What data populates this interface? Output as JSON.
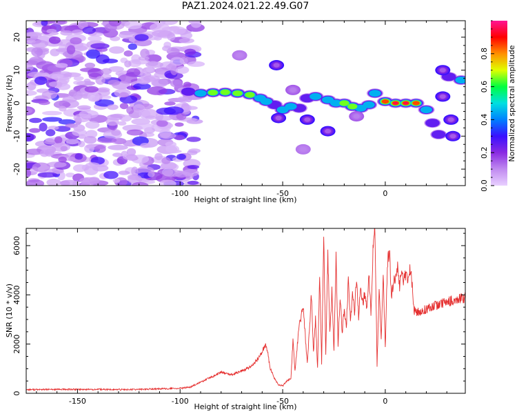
{
  "title": "PAZ1.2024.021.22.49.G07",
  "chart_data": [
    {
      "type": "heatmap",
      "xlabel": "Height of straight line (km)",
      "ylabel": "Frequency (Hz)",
      "xlim": [
        -175,
        39
      ],
      "ylim": [
        -25,
        25
      ],
      "xticks": [
        -150,
        -100,
        -50,
        0
      ],
      "yticks": [
        -20,
        -10,
        0,
        10,
        20
      ],
      "colorbar": {
        "label": "Normalized spectral amplitude",
        "range": [
          0,
          1
        ],
        "ticks": [
          0.0,
          0.2,
          0.4,
          0.6,
          0.8
        ],
        "colormap": [
          "#e8d0ff",
          "#c08af0",
          "#8a2be2",
          "#3a10ff",
          "#0080ff",
          "#00e0e0",
          "#00ff40",
          "#e0ff00",
          "#ff9000",
          "#ff0000",
          "#ff1493"
        ]
      },
      "noise_region": {
        "x_range": [
          -175,
          -92
        ],
        "y_range": [
          -25,
          25
        ]
      },
      "ridge": [
        {
          "x": -96,
          "y": 3.5,
          "amp": 0.35
        },
        {
          "x": -90,
          "y": 3.0,
          "amp": 0.55
        },
        {
          "x": -84,
          "y": 3.2,
          "amp": 0.65
        },
        {
          "x": -78,
          "y": 3.3,
          "amp": 0.75
        },
        {
          "x": -72,
          "y": 3.0,
          "amp": 0.78
        },
        {
          "x": -66,
          "y": 2.5,
          "amp": 0.8
        },
        {
          "x": -61,
          "y": 1.5,
          "amp": 0.55
        },
        {
          "x": -58,
          "y": 0.5,
          "amp": 0.45
        },
        {
          "x": -54,
          "y": -0.5,
          "amp": 0.3
        },
        {
          "x": -50,
          "y": -2.0,
          "amp": 0.55
        },
        {
          "x": -46,
          "y": -1.0,
          "amp": 0.5
        },
        {
          "x": -42,
          "y": -1.5,
          "amp": 0.4
        },
        {
          "x": -38,
          "y": 1.5,
          "amp": 0.35
        },
        {
          "x": -34,
          "y": 2.0,
          "amp": 0.45
        },
        {
          "x": -28,
          "y": 1.0,
          "amp": 0.5
        },
        {
          "x": -24,
          "y": 0.0,
          "amp": 0.55
        },
        {
          "x": -20,
          "y": 0.0,
          "amp": 0.7
        },
        {
          "x": -16,
          "y": -1.0,
          "amp": 0.65
        },
        {
          "x": -12,
          "y": -1.5,
          "amp": 0.6
        },
        {
          "x": -8,
          "y": -0.5,
          "amp": 0.5
        },
        {
          "x": -5,
          "y": 3.0,
          "amp": 0.5
        },
        {
          "x": 0,
          "y": 0.5,
          "amp": 0.85
        },
        {
          "x": 5,
          "y": 0.0,
          "amp": 0.95
        },
        {
          "x": 10,
          "y": 0.0,
          "amp": 0.95
        },
        {
          "x": 15,
          "y": 0.0,
          "amp": 0.9
        },
        {
          "x": 20,
          "y": -2.0,
          "amp": 0.55
        },
        {
          "x": 23,
          "y": -6.0,
          "amp": 0.4
        },
        {
          "x": 26,
          "y": -9.5,
          "amp": 0.35
        },
        {
          "x": 31,
          "y": 8.0,
          "amp": 0.4
        },
        {
          "x": 37,
          "y": 7.0,
          "amp": 0.55
        }
      ],
      "blobs": [
        {
          "x": -53,
          "y": 11.5,
          "amp": 0.3
        },
        {
          "x": -52,
          "y": -4.5,
          "amp": 0.3
        },
        {
          "x": -38,
          "y": -5.0,
          "amp": 0.3
        },
        {
          "x": -28,
          "y": -8.5,
          "amp": 0.3
        },
        {
          "x": 28,
          "y": 10.0,
          "amp": 0.3
        },
        {
          "x": 28,
          "y": 2.0,
          "amp": 0.3
        },
        {
          "x": 32,
          "y": -5.0,
          "amp": 0.3
        },
        {
          "x": 33,
          "y": -10.0,
          "amp": 0.3
        },
        {
          "x": -40,
          "y": -14.0,
          "amp": 0.12
        },
        {
          "x": -71,
          "y": 14.5,
          "amp": 0.12
        },
        {
          "x": -45,
          "y": 4.0,
          "amp": 0.15
        },
        {
          "x": -14,
          "y": -4.0,
          "amp": 0.15
        }
      ]
    },
    {
      "type": "line",
      "xlabel": "Height of straight line (km)",
      "ylabel": "SNR (10 * v/v)",
      "xlim": [
        -175,
        39
      ],
      "ylim": [
        0,
        6700
      ],
      "xticks": [
        -150,
        -100,
        -50,
        0
      ],
      "yticks": [
        0,
        2000,
        4000,
        6000
      ],
      "color": "#e53030",
      "series": [
        {
          "x": [
            -175,
            -150,
            -125,
            -100,
            -95,
            -90,
            -85,
            -80,
            -75,
            -70,
            -65,
            -62,
            -60,
            -58,
            -56,
            -55,
            -54,
            -52,
            -50,
            -48,
            -46,
            -45,
            -44,
            -42,
            -40,
            -38,
            -36,
            -35,
            -34,
            -33,
            -32,
            -31,
            -30,
            -29,
            -28,
            -27,
            -26,
            -25,
            -24,
            -23,
            -22,
            -21,
            -20,
            -19,
            -18,
            -17,
            -16,
            -15,
            -14,
            -13,
            -12,
            -11,
            -10,
            -9,
            -8,
            -7,
            -6,
            -5,
            -4,
            -3,
            -2,
            -1,
            0,
            1,
            2,
            3,
            4,
            5,
            6,
            7,
            8,
            9,
            10,
            11,
            12,
            13,
            14,
            15,
            20,
            25,
            30,
            35,
            39
          ],
          "y": [
            150,
            160,
            150,
            200,
            250,
            450,
            650,
            850,
            750,
            900,
            1100,
            1400,
            1700,
            2000,
            1000,
            800,
            600,
            350,
            300,
            500,
            600,
            2100,
            900,
            2700,
            3500,
            1200,
            4000,
            1700,
            3000,
            1000,
            5000,
            1200,
            6300,
            1600,
            5600,
            2400,
            4100,
            1700,
            5500,
            2000,
            4000,
            2400,
            3500,
            2600,
            4600,
            2900,
            4000,
            3300,
            4700,
            3100,
            4400,
            3700,
            4000,
            3400,
            4900,
            3200,
            5800,
            6700,
            1100,
            4200,
            2100,
            4800,
            1800,
            5200,
            5800,
            3900,
            4600,
            4800,
            5200,
            4400,
            5000,
            4600,
            4900,
            4400,
            5200,
            4500,
            3400,
            3250,
            3450,
            3600,
            3700,
            3850,
            3900
          ]
        }
      ]
    }
  ]
}
